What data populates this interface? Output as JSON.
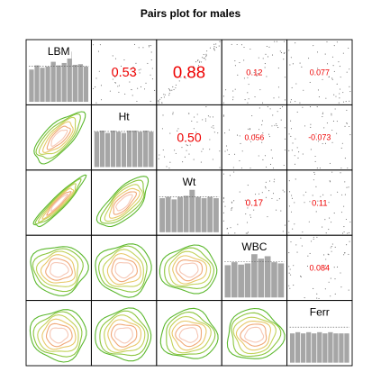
{
  "chart_data": {
    "type": "pairs",
    "title": "Pairs plot for males",
    "variables": [
      "LBM",
      "Ht",
      "Wt",
      "WBC",
      "Ferr"
    ],
    "correlations": [
      {
        "row": 0,
        "col": 1,
        "value": "0.53"
      },
      {
        "row": 0,
        "col": 2,
        "value": "0.88"
      },
      {
        "row": 0,
        "col": 3,
        "value": "0.12"
      },
      {
        "row": 0,
        "col": 4,
        "value": "0.077"
      },
      {
        "row": 1,
        "col": 2,
        "value": "0.50"
      },
      {
        "row": 1,
        "col": 3,
        "value": "0.056"
      },
      {
        "row": 1,
        "col": 4,
        "value": "-0.073"
      },
      {
        "row": 2,
        "col": 3,
        "value": "0.17"
      },
      {
        "row": 2,
        "col": 4,
        "value": "0.11"
      },
      {
        "row": 3,
        "col": 4,
        "value": "0.084"
      }
    ],
    "histograms": {
      "LBM": [
        0.55,
        0.62,
        0.58,
        0.6,
        0.68,
        0.62,
        0.66,
        0.85,
        0.63,
        0.64,
        0.6
      ],
      "Ht": [
        0.6,
        0.62,
        0.58,
        0.62,
        0.6,
        0.58,
        0.62,
        0.62,
        0.6,
        0.62,
        0.6
      ],
      "Wt": [
        0.58,
        0.6,
        0.56,
        0.6,
        0.62,
        0.72,
        0.6,
        0.58,
        0.6,
        0.58
      ],
      "WBC": [
        0.55,
        0.6,
        0.56,
        0.58,
        0.85,
        0.66,
        0.7,
        0.6,
        0.58
      ],
      "Ferr": [
        0.5,
        0.52,
        0.5,
        0.52,
        0.5,
        0.52,
        0.5,
        0.52,
        0.5,
        0.5,
        0.5
      ]
    },
    "lower_panel": "density contours",
    "upper_panel": "scatter points with correlation coefficient",
    "colors": {
      "correlation_text": "#ee0000",
      "histogram_bar": "#a6a6a6",
      "contour_colors": [
        "#5cb82e",
        "#8cc63f",
        "#c3d25a",
        "#e8c86a",
        "#f0a878",
        "#f6c7b5"
      ]
    }
  }
}
